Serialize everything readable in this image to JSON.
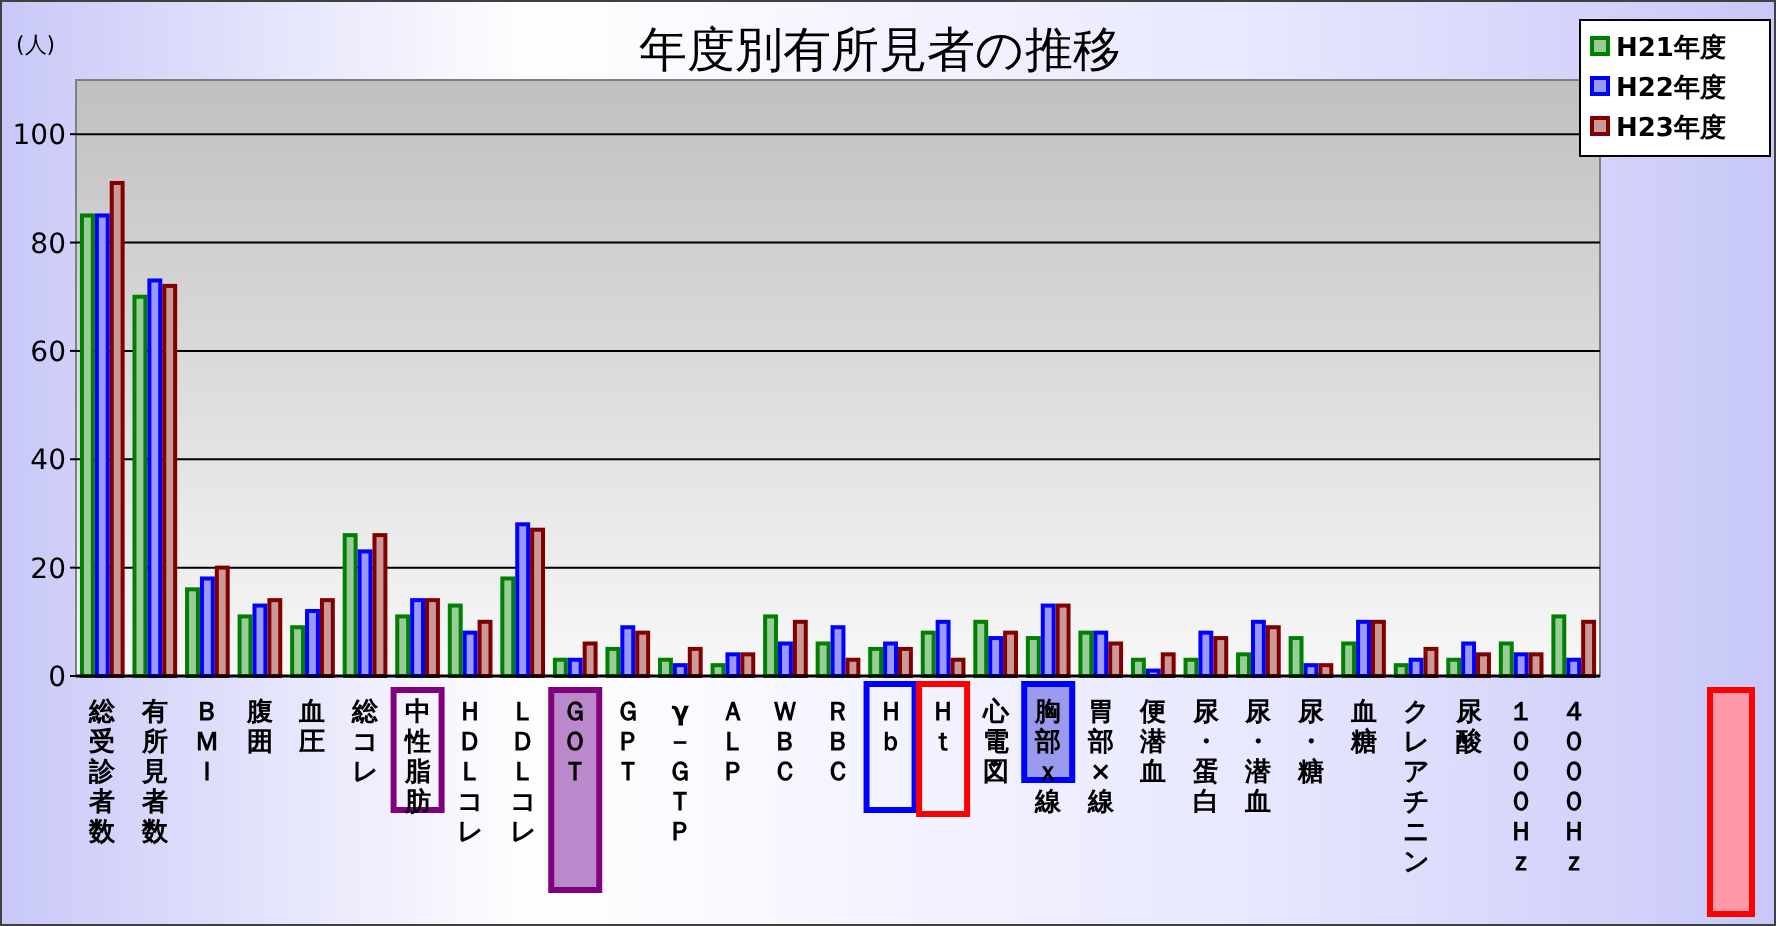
{
  "chart_data": {
    "type": "bar",
    "title": "年度別有所見者の推移",
    "annotations": [
      "(人)"
    ],
    "categories": [
      "総受診者数",
      "有所見者数",
      "ＢＭＩ",
      "腹囲",
      "血圧",
      "総コレ",
      "中性脂肪",
      "ＨＤＬコレ",
      "ＬＤＬコレ",
      "ＧＯＴ",
      "ＧＰＴ",
      "γ－ＧＴＰ",
      "ＡＬＰ",
      "ＷＢＣ",
      "ＲＢＣ",
      "Ｈｂ",
      "Ｈｔ",
      "心電図",
      "胸部ｘ線",
      "胃部×線",
      "便潜血",
      "尿・蛋白",
      "尿・潜血",
      "尿・糖",
      "血糖",
      "クレアチニン",
      "尿酸",
      "１０００Ｈｚ",
      "４０００Ｈｚ"
    ],
    "series": [
      {
        "name": "H21年度",
        "color": "#008000",
        "values": [
          85,
          70,
          16,
          11,
          9,
          26,
          11,
          13,
          18,
          3,
          5,
          3,
          2,
          11,
          6,
          5,
          8,
          10,
          7,
          8,
          3,
          3,
          4,
          7,
          6,
          2,
          3,
          6,
          11
        ]
      },
      {
        "name": "H22年度",
        "color": "#0000ff",
        "values": [
          85,
          73,
          18,
          13,
          12,
          23,
          14,
          8,
          28,
          3,
          9,
          2,
          4,
          6,
          9,
          6,
          10,
          7,
          13,
          8,
          1,
          8,
          10,
          2,
          10,
          3,
          6,
          4,
          3
        ]
      },
      {
        "name": "H23年度",
        "color": "#800000",
        "values": [
          91,
          72,
          20,
          14,
          14,
          26,
          14,
          10,
          27,
          6,
          8,
          5,
          4,
          10,
          3,
          5,
          3,
          8,
          13,
          6,
          4,
          7,
          9,
          2,
          10,
          5,
          4,
          4,
          10
        ]
      }
    ],
    "ylim": [
      0,
      110
    ],
    "yticks": [
      0,
      20,
      40,
      60,
      80,
      100
    ],
    "grid": "y",
    "legend": "top right"
  }
}
